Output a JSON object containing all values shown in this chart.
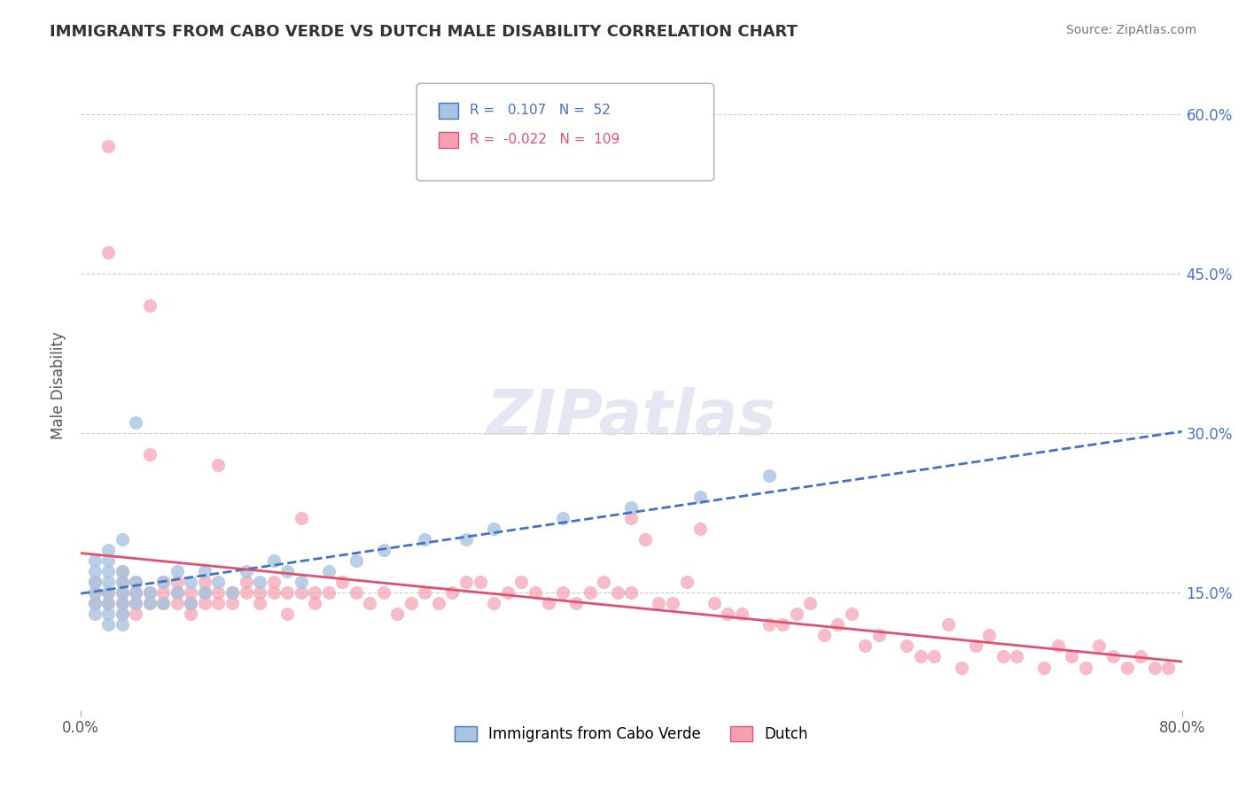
{
  "title": "IMMIGRANTS FROM CABO VERDE VS DUTCH MALE DISABILITY CORRELATION CHART",
  "source_text": "Source: ZipAtlas.com",
  "xlabel": "",
  "ylabel": "Male Disability",
  "xmin": 0.0,
  "xmax": 0.8,
  "ymin": 0.04,
  "ymax": 0.65,
  "yticks": [
    0.15,
    0.3,
    0.45,
    0.6
  ],
  "ytick_labels": [
    "15.0%",
    "30.0%",
    "45.0%",
    "60.0%"
  ],
  "xticks": [
    0.0,
    0.8
  ],
  "xtick_labels": [
    "0.0%",
    "80.0%"
  ],
  "cabo_verde_R": 0.107,
  "cabo_verde_N": 52,
  "dutch_R": -0.022,
  "dutch_N": 109,
  "cabo_verde_color": "#a8c4e0",
  "dutch_color": "#f4a0b0",
  "cabo_verde_line_color": "#4472c4",
  "dutch_line_color": "#e05070",
  "watermark": "ZIPatlas",
  "title_fontsize": 13,
  "axis_color": "#4472c4",
  "cabo_verde_x": [
    0.01,
    0.01,
    0.01,
    0.01,
    0.01,
    0.01,
    0.02,
    0.02,
    0.02,
    0.02,
    0.02,
    0.02,
    0.02,
    0.02,
    0.03,
    0.03,
    0.03,
    0.03,
    0.03,
    0.03,
    0.03,
    0.04,
    0.04,
    0.04,
    0.04,
    0.05,
    0.05,
    0.06,
    0.06,
    0.07,
    0.07,
    0.08,
    0.08,
    0.09,
    0.09,
    0.1,
    0.11,
    0.12,
    0.13,
    0.14,
    0.15,
    0.16,
    0.18,
    0.2,
    0.22,
    0.25,
    0.28,
    0.3,
    0.35,
    0.4,
    0.45,
    0.5
  ],
  "cabo_verde_y": [
    0.14,
    0.15,
    0.16,
    0.13,
    0.17,
    0.18,
    0.14,
    0.15,
    0.16,
    0.13,
    0.17,
    0.12,
    0.18,
    0.19,
    0.14,
    0.15,
    0.13,
    0.16,
    0.17,
    0.12,
    0.2,
    0.14,
    0.15,
    0.16,
    0.31,
    0.14,
    0.15,
    0.14,
    0.16,
    0.15,
    0.17,
    0.14,
    0.16,
    0.15,
    0.17,
    0.16,
    0.15,
    0.17,
    0.16,
    0.18,
    0.17,
    0.16,
    0.17,
    0.18,
    0.19,
    0.2,
    0.2,
    0.21,
    0.22,
    0.23,
    0.24,
    0.26
  ],
  "dutch_x": [
    0.01,
    0.01,
    0.01,
    0.02,
    0.02,
    0.02,
    0.02,
    0.03,
    0.03,
    0.03,
    0.03,
    0.03,
    0.04,
    0.04,
    0.04,
    0.04,
    0.05,
    0.05,
    0.05,
    0.05,
    0.06,
    0.06,
    0.06,
    0.07,
    0.07,
    0.07,
    0.08,
    0.08,
    0.08,
    0.09,
    0.09,
    0.09,
    0.1,
    0.1,
    0.1,
    0.11,
    0.11,
    0.12,
    0.12,
    0.13,
    0.13,
    0.14,
    0.14,
    0.15,
    0.15,
    0.16,
    0.16,
    0.17,
    0.17,
    0.18,
    0.19,
    0.2,
    0.21,
    0.22,
    0.23,
    0.24,
    0.25,
    0.26,
    0.27,
    0.28,
    0.29,
    0.3,
    0.31,
    0.32,
    0.33,
    0.34,
    0.35,
    0.36,
    0.37,
    0.38,
    0.39,
    0.4,
    0.41,
    0.43,
    0.44,
    0.45,
    0.46,
    0.48,
    0.5,
    0.52,
    0.53,
    0.55,
    0.56,
    0.58,
    0.6,
    0.62,
    0.63,
    0.65,
    0.66,
    0.68,
    0.7,
    0.71,
    0.72,
    0.73,
    0.74,
    0.75,
    0.76,
    0.77,
    0.78,
    0.79,
    0.4,
    0.42,
    0.47,
    0.51,
    0.54,
    0.57,
    0.61,
    0.64,
    0.67
  ],
  "dutch_y": [
    0.15,
    0.14,
    0.16,
    0.57,
    0.47,
    0.15,
    0.14,
    0.15,
    0.14,
    0.16,
    0.13,
    0.17,
    0.15,
    0.14,
    0.16,
    0.13,
    0.15,
    0.14,
    0.42,
    0.28,
    0.15,
    0.14,
    0.16,
    0.15,
    0.14,
    0.16,
    0.15,
    0.14,
    0.13,
    0.15,
    0.14,
    0.16,
    0.15,
    0.14,
    0.27,
    0.15,
    0.14,
    0.15,
    0.16,
    0.15,
    0.14,
    0.15,
    0.16,
    0.15,
    0.13,
    0.15,
    0.22,
    0.15,
    0.14,
    0.15,
    0.16,
    0.15,
    0.14,
    0.15,
    0.13,
    0.14,
    0.15,
    0.14,
    0.15,
    0.16,
    0.16,
    0.14,
    0.15,
    0.16,
    0.15,
    0.14,
    0.15,
    0.14,
    0.15,
    0.16,
    0.15,
    0.22,
    0.2,
    0.14,
    0.16,
    0.21,
    0.14,
    0.13,
    0.12,
    0.13,
    0.14,
    0.12,
    0.13,
    0.11,
    0.1,
    0.09,
    0.12,
    0.1,
    0.11,
    0.09,
    0.08,
    0.1,
    0.09,
    0.08,
    0.1,
    0.09,
    0.08,
    0.09,
    0.08,
    0.08,
    0.15,
    0.14,
    0.13,
    0.12,
    0.11,
    0.1,
    0.09,
    0.08,
    0.09
  ]
}
